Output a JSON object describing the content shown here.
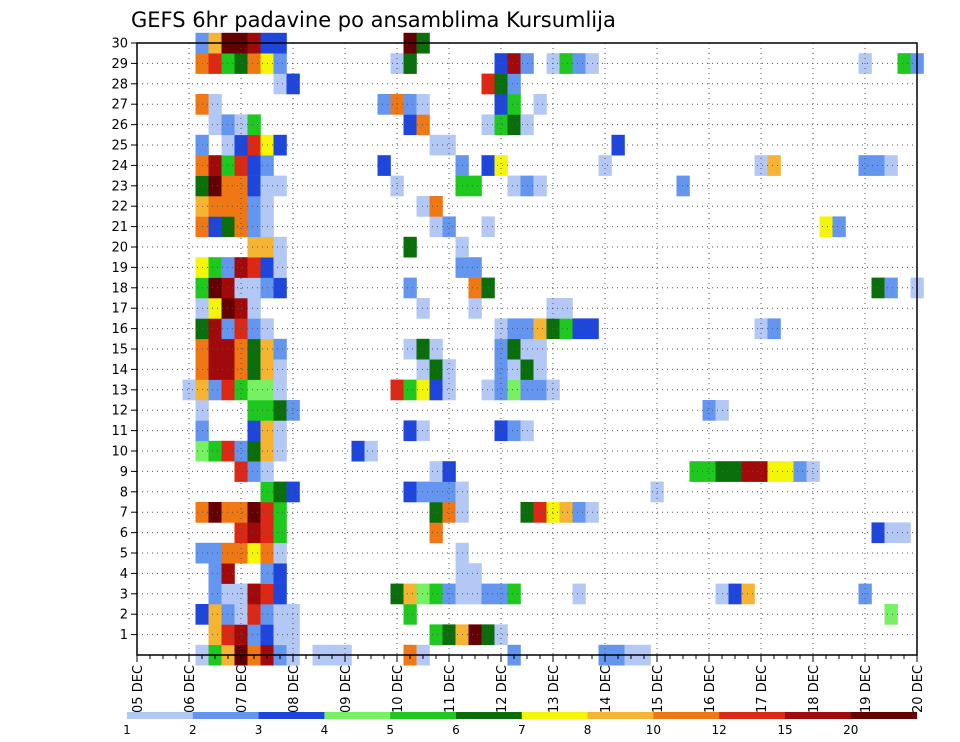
{
  "chart_data": {
    "type": "heatmap",
    "title": "GEFS 6hr padavine po ansamblima Kursumlija",
    "x_tick_labels": [
      "05 DEC",
      "06 DEC",
      "07 DEC",
      "08 DEC",
      "09 DEC",
      "10 DEC",
      "11 DEC",
      "12 DEC",
      "13 DEC",
      "14 DEC",
      "15 DEC",
      "16 DEC",
      "17 DEC",
      "18 DEC",
      "19 DEC",
      "20 DEC"
    ],
    "y_tick_labels": [
      "1",
      "2",
      "3",
      "4",
      "5",
      "6",
      "7",
      "8",
      "9",
      "10",
      "11",
      "12",
      "13",
      "14",
      "15",
      "16",
      "17",
      "18",
      "19",
      "20",
      "21",
      "22",
      "23",
      "24",
      "25",
      "26",
      "27",
      "28",
      "29",
      "30"
    ],
    "xlim": [
      0,
      60
    ],
    "ylim": [
      0,
      30
    ],
    "step_per_day": 4,
    "grid": true,
    "legend": {
      "placement": "bottom",
      "labels": [
        "1",
        "2",
        "3",
        "4",
        "5",
        "6",
        "7",
        "8",
        "10",
        "12",
        "15",
        "20"
      ],
      "colors": [
        "#b4c8f5",
        "#6496f0",
        "#1e46dc",
        "#78f064",
        "#1ec81e",
        "#0a6e0a",
        "#f5f50a",
        "#f5b432",
        "#f07814",
        "#dc2814",
        "#a00a0a",
        "#640000"
      ]
    },
    "cells": [
      [
        0,
        5,
        0
      ],
      [
        0,
        6,
        4
      ],
      [
        0,
        7,
        7
      ],
      [
        0,
        8,
        11
      ],
      [
        0,
        9,
        8
      ],
      [
        0,
        10,
        10
      ],
      [
        0,
        11,
        1
      ],
      [
        0,
        12,
        0
      ],
      [
        0,
        14,
        0
      ],
      [
        0,
        15,
        0
      ],
      [
        0,
        16,
        0
      ],
      [
        0,
        21,
        8
      ],
      [
        0,
        22,
        0
      ],
      [
        0,
        29,
        1
      ],
      [
        0,
        36,
        1
      ],
      [
        0,
        37,
        1
      ],
      [
        0,
        38,
        0
      ],
      [
        0,
        39,
        0
      ],
      [
        1,
        6,
        7
      ],
      [
        1,
        7,
        9
      ],
      [
        1,
        8,
        10
      ],
      [
        1,
        9,
        1
      ],
      [
        1,
        10,
        2
      ],
      [
        1,
        11,
        0
      ],
      [
        1,
        12,
        0
      ],
      [
        1,
        23,
        4
      ],
      [
        1,
        24,
        5
      ],
      [
        1,
        25,
        7
      ],
      [
        1,
        26,
        11
      ],
      [
        1,
        27,
        5
      ],
      [
        1,
        28,
        0
      ],
      [
        2,
        5,
        2
      ],
      [
        2,
        6,
        7
      ],
      [
        2,
        7,
        1
      ],
      [
        2,
        8,
        0
      ],
      [
        2,
        9,
        9
      ],
      [
        2,
        10,
        1
      ],
      [
        2,
        11,
        0
      ],
      [
        2,
        12,
        0
      ],
      [
        2,
        21,
        4
      ],
      [
        2,
        58,
        3
      ],
      [
        3,
        6,
        1
      ],
      [
        3,
        7,
        0
      ],
      [
        3,
        8,
        0
      ],
      [
        3,
        9,
        10
      ],
      [
        3,
        10,
        9
      ],
      [
        3,
        11,
        2
      ],
      [
        3,
        20,
        5
      ],
      [
        3,
        21,
        7
      ],
      [
        3,
        22,
        3
      ],
      [
        3,
        23,
        4
      ],
      [
        3,
        24,
        1
      ],
      [
        3,
        25,
        0
      ],
      [
        3,
        26,
        0
      ],
      [
        3,
        27,
        1
      ],
      [
        3,
        28,
        1
      ],
      [
        3,
        29,
        4
      ],
      [
        3,
        34,
        0
      ],
      [
        3,
        45,
        0
      ],
      [
        3,
        46,
        2
      ],
      [
        3,
        47,
        7
      ],
      [
        3,
        56,
        1
      ],
      [
        4,
        6,
        1
      ],
      [
        4,
        7,
        10
      ],
      [
        4,
        10,
        1
      ],
      [
        4,
        11,
        2
      ],
      [
        4,
        25,
        0
      ],
      [
        4,
        26,
        0
      ],
      [
        5,
        5,
        1
      ],
      [
        5,
        6,
        1
      ],
      [
        5,
        7,
        8
      ],
      [
        5,
        8,
        8
      ],
      [
        5,
        9,
        6
      ],
      [
        5,
        10,
        8
      ],
      [
        5,
        11,
        0
      ],
      [
        5,
        25,
        0
      ],
      [
        6,
        8,
        9
      ],
      [
        6,
        9,
        10
      ],
      [
        6,
        10,
        9
      ],
      [
        6,
        11,
        4
      ],
      [
        6,
        23,
        8
      ],
      [
        6,
        57,
        2
      ],
      [
        6,
        58,
        0
      ],
      [
        6,
        59,
        0
      ],
      [
        7,
        5,
        8
      ],
      [
        7,
        6,
        11
      ],
      [
        7,
        7,
        8
      ],
      [
        7,
        8,
        8
      ],
      [
        7,
        9,
        11
      ],
      [
        7,
        10,
        9
      ],
      [
        7,
        11,
        4
      ],
      [
        7,
        23,
        5
      ],
      [
        7,
        24,
        8
      ],
      [
        7,
        25,
        0
      ],
      [
        7,
        30,
        5
      ],
      [
        7,
        31,
        9
      ],
      [
        7,
        32,
        6
      ],
      [
        7,
        33,
        7
      ],
      [
        7,
        34,
        1
      ],
      [
        7,
        35,
        0
      ],
      [
        8,
        10,
        4
      ],
      [
        8,
        11,
        5
      ],
      [
        8,
        12,
        2
      ],
      [
        8,
        21,
        2
      ],
      [
        8,
        22,
        1
      ],
      [
        8,
        23,
        1
      ],
      [
        8,
        24,
        1
      ],
      [
        8,
        25,
        0
      ],
      [
        8,
        40,
        0
      ],
      [
        9,
        8,
        9
      ],
      [
        9,
        9,
        1
      ],
      [
        9,
        10,
        0
      ],
      [
        9,
        23,
        0
      ],
      [
        9,
        24,
        2
      ],
      [
        9,
        43,
        4
      ],
      [
        9,
        44,
        4
      ],
      [
        9,
        45,
        5
      ],
      [
        9,
        46,
        5
      ],
      [
        9,
        47,
        10
      ],
      [
        9,
        48,
        10
      ],
      [
        9,
        49,
        6
      ],
      [
        9,
        50,
        6
      ],
      [
        9,
        51,
        1
      ],
      [
        9,
        52,
        0
      ],
      [
        10,
        5,
        3
      ],
      [
        10,
        6,
        4
      ],
      [
        10,
        7,
        9
      ],
      [
        10,
        8,
        1
      ],
      [
        10,
        9,
        5
      ],
      [
        10,
        10,
        7
      ],
      [
        10,
        11,
        0
      ],
      [
        10,
        17,
        2
      ],
      [
        10,
        18,
        0
      ],
      [
        11,
        5,
        1
      ],
      [
        11,
        9,
        2
      ],
      [
        11,
        10,
        7
      ],
      [
        11,
        11,
        0
      ],
      [
        11,
        21,
        2
      ],
      [
        11,
        22,
        0
      ],
      [
        11,
        28,
        2
      ],
      [
        11,
        29,
        1
      ],
      [
        11,
        30,
        0
      ],
      [
        12,
        5,
        0
      ],
      [
        12,
        9,
        4
      ],
      [
        12,
        10,
        4
      ],
      [
        12,
        11,
        5
      ],
      [
        12,
        12,
        1
      ],
      [
        12,
        44,
        1
      ],
      [
        12,
        45,
        0
      ],
      [
        13,
        4,
        0
      ],
      [
        13,
        5,
        7
      ],
      [
        13,
        6,
        1
      ],
      [
        13,
        7,
        9
      ],
      [
        13,
        8,
        4
      ],
      [
        13,
        9,
        3
      ],
      [
        13,
        10,
        3
      ],
      [
        13,
        11,
        0
      ],
      [
        13,
        20,
        9
      ],
      [
        13,
        21,
        4
      ],
      [
        13,
        22,
        6
      ],
      [
        13,
        23,
        2
      ],
      [
        13,
        24,
        0
      ],
      [
        13,
        27,
        0
      ],
      [
        13,
        28,
        1
      ],
      [
        13,
        29,
        3
      ],
      [
        13,
        30,
        1
      ],
      [
        13,
        31,
        1
      ],
      [
        13,
        32,
        0
      ],
      [
        14,
        5,
        8
      ],
      [
        14,
        6,
        10
      ],
      [
        14,
        7,
        10
      ],
      [
        14,
        8,
        8
      ],
      [
        14,
        9,
        5
      ],
      [
        14,
        10,
        7
      ],
      [
        14,
        11,
        0
      ],
      [
        14,
        22,
        0
      ],
      [
        14,
        23,
        5
      ],
      [
        14,
        24,
        0
      ],
      [
        14,
        28,
        1
      ],
      [
        14,
        29,
        0
      ],
      [
        14,
        30,
        5
      ],
      [
        14,
        31,
        0
      ],
      [
        15,
        5,
        8
      ],
      [
        15,
        6,
        10
      ],
      [
        15,
        7,
        10
      ],
      [
        15,
        8,
        8
      ],
      [
        15,
        9,
        5
      ],
      [
        15,
        10,
        7
      ],
      [
        15,
        11,
        1
      ],
      [
        15,
        21,
        0
      ],
      [
        15,
        22,
        5
      ],
      [
        15,
        23,
        0
      ],
      [
        15,
        28,
        1
      ],
      [
        15,
        29,
        5
      ],
      [
        15,
        30,
        0
      ],
      [
        15,
        31,
        0
      ],
      [
        16,
        5,
        5
      ],
      [
        16,
        6,
        10
      ],
      [
        16,
        7,
        1
      ],
      [
        16,
        8,
        9
      ],
      [
        16,
        9,
        1
      ],
      [
        16,
        10,
        0
      ],
      [
        16,
        28,
        0
      ],
      [
        16,
        29,
        1
      ],
      [
        16,
        30,
        1
      ],
      [
        16,
        31,
        7
      ],
      [
        16,
        32,
        5
      ],
      [
        16,
        33,
        4
      ],
      [
        16,
        34,
        2
      ],
      [
        16,
        35,
        2
      ],
      [
        16,
        48,
        0
      ],
      [
        16,
        49,
        1
      ],
      [
        17,
        5,
        0
      ],
      [
        17,
        6,
        6
      ],
      [
        17,
        7,
        11
      ],
      [
        17,
        8,
        10
      ],
      [
        17,
        9,
        0
      ],
      [
        17,
        22,
        0
      ],
      [
        17,
        26,
        0
      ],
      [
        17,
        32,
        0
      ],
      [
        17,
        33,
        0
      ],
      [
        18,
        5,
        4
      ],
      [
        18,
        6,
        11
      ],
      [
        18,
        7,
        10
      ],
      [
        18,
        8,
        0
      ],
      [
        18,
        9,
        0
      ],
      [
        18,
        10,
        1
      ],
      [
        18,
        11,
        2
      ],
      [
        18,
        21,
        1
      ],
      [
        18,
        26,
        8
      ],
      [
        18,
        27,
        5
      ],
      [
        18,
        57,
        5
      ],
      [
        18,
        58,
        1
      ],
      [
        18,
        60,
        0
      ],
      [
        19,
        5,
        6
      ],
      [
        19,
        6,
        4
      ],
      [
        19,
        7,
        1
      ],
      [
        19,
        8,
        10
      ],
      [
        19,
        9,
        9
      ],
      [
        19,
        10,
        2
      ],
      [
        19,
        11,
        0
      ],
      [
        19,
        25,
        1
      ],
      [
        19,
        26,
        1
      ],
      [
        20,
        9,
        7
      ],
      [
        20,
        10,
        7
      ],
      [
        20,
        11,
        0
      ],
      [
        20,
        21,
        5
      ],
      [
        20,
        25,
        0
      ],
      [
        21,
        5,
        8
      ],
      [
        21,
        6,
        2
      ],
      [
        21,
        7,
        5
      ],
      [
        21,
        8,
        8
      ],
      [
        21,
        9,
        1
      ],
      [
        21,
        10,
        0
      ],
      [
        21,
        23,
        0
      ],
      [
        21,
        24,
        1
      ],
      [
        21,
        27,
        0
      ],
      [
        21,
        53,
        6
      ],
      [
        21,
        54,
        1
      ],
      [
        22,
        5,
        7
      ],
      [
        22,
        6,
        8
      ],
      [
        22,
        7,
        8
      ],
      [
        22,
        8,
        8
      ],
      [
        22,
        9,
        1
      ],
      [
        22,
        10,
        0
      ],
      [
        22,
        22,
        0
      ],
      [
        22,
        23,
        8
      ],
      [
        23,
        5,
        5
      ],
      [
        23,
        6,
        11
      ],
      [
        23,
        7,
        8
      ],
      [
        23,
        8,
        8
      ],
      [
        23,
        9,
        2
      ],
      [
        23,
        10,
        0
      ],
      [
        23,
        11,
        0
      ],
      [
        23,
        20,
        0
      ],
      [
        23,
        25,
        4
      ],
      [
        23,
        26,
        4
      ],
      [
        23,
        29,
        0
      ],
      [
        23,
        30,
        1
      ],
      [
        23,
        31,
        0
      ],
      [
        23,
        42,
        1
      ],
      [
        24,
        5,
        8
      ],
      [
        24,
        6,
        10
      ],
      [
        24,
        7,
        4
      ],
      [
        24,
        8,
        9
      ],
      [
        24,
        9,
        2
      ],
      [
        24,
        10,
        1
      ],
      [
        24,
        19,
        2
      ],
      [
        24,
        25,
        1
      ],
      [
        24,
        27,
        2
      ],
      [
        24,
        28,
        6
      ],
      [
        24,
        36,
        0
      ],
      [
        24,
        48,
        0
      ],
      [
        24,
        49,
        7
      ],
      [
        24,
        56,
        1
      ],
      [
        24,
        57,
        1
      ],
      [
        24,
        58,
        0
      ],
      [
        25,
        5,
        1
      ],
      [
        25,
        7,
        0
      ],
      [
        25,
        8,
        2
      ],
      [
        25,
        9,
        9
      ],
      [
        25,
        10,
        6
      ],
      [
        25,
        11,
        2
      ],
      [
        25,
        23,
        0
      ],
      [
        25,
        24,
        0
      ],
      [
        25,
        37,
        2
      ],
      [
        26,
        6,
        0
      ],
      [
        26,
        7,
        1
      ],
      [
        26,
        8,
        0
      ],
      [
        26,
        9,
        4
      ],
      [
        26,
        21,
        2
      ],
      [
        26,
        22,
        8
      ],
      [
        26,
        27,
        0
      ],
      [
        26,
        28,
        4
      ],
      [
        26,
        29,
        5
      ],
      [
        26,
        30,
        0
      ],
      [
        27,
        5,
        8
      ],
      [
        27,
        6,
        0
      ],
      [
        27,
        19,
        1
      ],
      [
        27,
        20,
        8
      ],
      [
        27,
        21,
        1
      ],
      [
        27,
        22,
        0
      ],
      [
        27,
        28,
        2
      ],
      [
        27,
        29,
        4
      ],
      [
        27,
        31,
        0
      ],
      [
        28,
        11,
        0
      ],
      [
        28,
        12,
        2
      ],
      [
        28,
        27,
        9
      ],
      [
        28,
        28,
        5
      ],
      [
        28,
        29,
        1
      ],
      [
        29,
        5,
        8
      ],
      [
        29,
        6,
        9
      ],
      [
        29,
        7,
        4
      ],
      [
        29,
        8,
        5
      ],
      [
        29,
        9,
        8
      ],
      [
        29,
        10,
        6
      ],
      [
        29,
        11,
        1
      ],
      [
        29,
        20,
        0
      ],
      [
        29,
        21,
        5
      ],
      [
        29,
        28,
        2
      ],
      [
        29,
        29,
        10
      ],
      [
        29,
        30,
        1
      ],
      [
        29,
        32,
        0
      ],
      [
        29,
        33,
        4
      ],
      [
        29,
        34,
        1
      ],
      [
        29,
        35,
        0
      ],
      [
        29,
        56,
        0
      ],
      [
        29,
        59,
        4
      ],
      [
        29,
        60,
        1
      ],
      [
        30,
        5,
        1
      ],
      [
        30,
        6,
        7
      ],
      [
        30,
        7,
        11
      ],
      [
        30,
        8,
        11
      ],
      [
        30,
        9,
        10
      ],
      [
        30,
        10,
        2
      ],
      [
        30,
        11,
        2
      ],
      [
        30,
        21,
        11
      ],
      [
        30,
        22,
        5
      ]
    ]
  }
}
